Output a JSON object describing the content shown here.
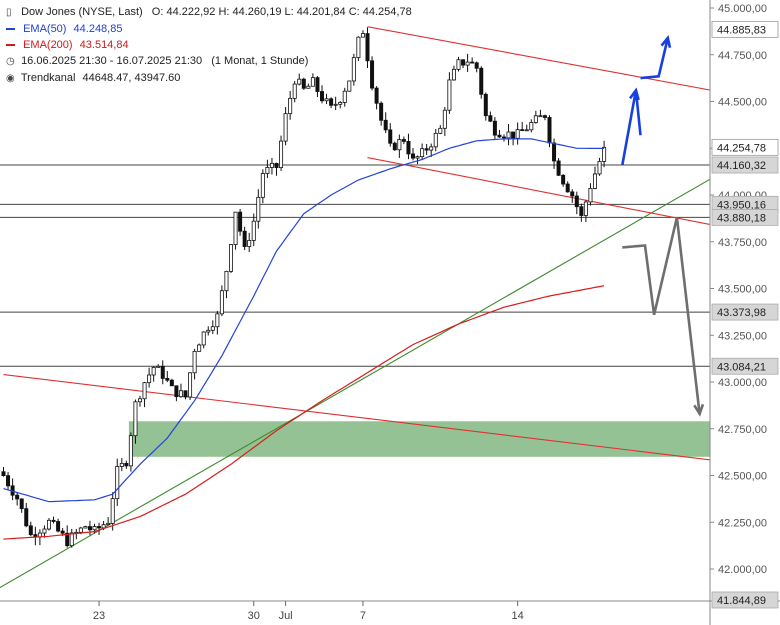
{
  "legend": {
    "title": "Dow Jones (NYSE, Last)",
    "ohlc": "O: 44.222,92  H: 44.260,19  L: 44.201,84  C: 44.254,78",
    "ema50_label": "EMA(50)",
    "ema50_value": "44.248,85",
    "ema200_label": "EMA(200)",
    "ema200_value": "43.514,84",
    "period": "16.06.2025 21:30 - 16.07.2025 21:30",
    "interval": "(1 Monat, 1 Stunde)",
    "trend_label": "Trendkanal",
    "trend_values": "44648.47, 43947.60"
  },
  "chart_data": {
    "type": "candlestick",
    "title": "Dow Jones (NYSE, Last)",
    "ylim": [
      41844.89,
      45000
    ],
    "y_ticks": [
      "42.000,00",
      "42.250,00",
      "42.500,00",
      "42.750,00",
      "43.000,00",
      "43.250,00",
      "43.500,00",
      "43.750,00",
      "44.000,00",
      "44.250,00",
      "44.500,00",
      "44.750,00",
      "45.000,00"
    ],
    "y_tick_values": [
      42000,
      42250,
      42500,
      42750,
      43000,
      43250,
      43500,
      43750,
      44000,
      44250,
      44500,
      44750,
      45000
    ],
    "x_ticks": [
      "23",
      "30",
      "Jul",
      "7",
      "14"
    ],
    "x_tick_bar": [
      21,
      55,
      62,
      79,
      113
    ],
    "n_bars": 133,
    "close_anchors": [
      [
        0,
        42500
      ],
      [
        3,
        42380
      ],
      [
        6,
        42180
      ],
      [
        10,
        42250
      ],
      [
        14,
        42150
      ],
      [
        18,
        42230
      ],
      [
        20,
        42200
      ],
      [
        23,
        42260
      ],
      [
        25,
        42520
      ],
      [
        27,
        42580
      ],
      [
        29,
        42880
      ],
      [
        31,
        43000
      ],
      [
        33,
        43080
      ],
      [
        35,
        43040
      ],
      [
        37,
        42960
      ],
      [
        40,
        42920
      ],
      [
        42,
        43180
      ],
      [
        45,
        43300
      ],
      [
        47,
        43350
      ],
      [
        49,
        43600
      ],
      [
        51,
        43920
      ],
      [
        53,
        43700
      ],
      [
        55,
        43860
      ],
      [
        57,
        44120
      ],
      [
        60,
        44150
      ],
      [
        62,
        44420
      ],
      [
        64,
        44620
      ],
      [
        66,
        44560
      ],
      [
        68,
        44600
      ],
      [
        70,
        44520
      ],
      [
        72,
        44460
      ],
      [
        74,
        44520
      ],
      [
        76,
        44620
      ],
      [
        78,
        44820
      ],
      [
        79,
        44880
      ],
      [
        81,
        44600
      ],
      [
        83,
        44400
      ],
      [
        85,
        44250
      ],
      [
        88,
        44300
      ],
      [
        90,
        44180
      ],
      [
        92,
        44220
      ],
      [
        94,
        44280
      ],
      [
        96,
        44350
      ],
      [
        98,
        44600
      ],
      [
        100,
        44700
      ],
      [
        102,
        44720
      ],
      [
        104,
        44680
      ],
      [
        106,
        44420
      ],
      [
        108,
        44350
      ],
      [
        110,
        44330
      ],
      [
        113,
        44320
      ],
      [
        116,
        44380
      ],
      [
        119,
        44430
      ],
      [
        121,
        44180
      ],
      [
        123,
        44080
      ],
      [
        125,
        44000
      ],
      [
        127,
        43880
      ],
      [
        129,
        44050
      ],
      [
        131,
        44180
      ],
      [
        132,
        44254.78
      ]
    ],
    "ema50_anchors": [
      [
        0,
        42430
      ],
      [
        10,
        42360
      ],
      [
        20,
        42370
      ],
      [
        24,
        42400
      ],
      [
        30,
        42560
      ],
      [
        36,
        42700
      ],
      [
        42,
        42900
      ],
      [
        48,
        43140
      ],
      [
        55,
        43460
      ],
      [
        60,
        43700
      ],
      [
        66,
        43900
      ],
      [
        72,
        44000
      ],
      [
        78,
        44080
      ],
      [
        85,
        44140
      ],
      [
        92,
        44190
      ],
      [
        98,
        44250
      ],
      [
        104,
        44290
      ],
      [
        110,
        44300
      ],
      [
        116,
        44300
      ],
      [
        120,
        44280
      ],
      [
        126,
        44250
      ],
      [
        132,
        44248.85
      ]
    ],
    "ema200_anchors": [
      [
        0,
        42160
      ],
      [
        10,
        42175
      ],
      [
        20,
        42200
      ],
      [
        30,
        42280
      ],
      [
        40,
        42400
      ],
      [
        50,
        42560
      ],
      [
        60,
        42740
      ],
      [
        70,
        42900
      ],
      [
        80,
        43050
      ],
      [
        90,
        43200
      ],
      [
        100,
        43310
      ],
      [
        110,
        43400
      ],
      [
        120,
        43460
      ],
      [
        132,
        43514.84
      ]
    ],
    "horizontal_levels": [
      44160.32,
      43950.16,
      43880.18,
      43373.98,
      43084.21
    ],
    "price_tags": [
      {
        "value": 44885.83,
        "label": "44.885,83",
        "style": "white"
      },
      {
        "value": 44254.78,
        "label": "44.254,78",
        "style": "white"
      },
      {
        "value": 44160.32,
        "label": "44.160,32",
        "style": "grey"
      },
      {
        "value": 43950.16,
        "label": "43.950,16",
        "style": "grey"
      },
      {
        "value": 43880.18,
        "label": "43.880,18",
        "style": "grey"
      },
      {
        "value": 43373.98,
        "label": "43.373,98",
        "style": "grey"
      },
      {
        "value": 43084.21,
        "label": "43.084,21",
        "style": "grey"
      },
      {
        "value": 41844.89,
        "label": "41.844,89",
        "style": "grey"
      }
    ],
    "channel_upper": [
      [
        80,
        44900
      ],
      [
        160,
        44540
      ]
    ],
    "channel_lower": [
      [
        80,
        44200
      ],
      [
        160,
        43820
      ]
    ],
    "red_trendline": [
      [
        0,
        43040
      ],
      [
        160,
        42570
      ]
    ],
    "green_trendline": [
      [
        -8,
        41800
      ],
      [
        160,
        44150
      ]
    ],
    "support_zone": [
      42600,
      42790
    ],
    "support_zone_start_bar": 28,
    "scenario_up": [
      [
        136,
        44160
      ],
      [
        139,
        44560
      ],
      [
        140,
        44320
      ],
      [
        140,
        44625
      ],
      [
        144,
        44635
      ],
      [
        146,
        44840
      ]
    ],
    "scenario_down": [
      [
        136,
        43720
      ],
      [
        141,
        43730
      ],
      [
        143,
        43360
      ],
      [
        148,
        43880
      ],
      [
        153,
        42830
      ]
    ],
    "colors": {
      "up": "#ffffff",
      "down": "#111111",
      "ema50": "#2444d8",
      "ema200": "#d81c1c",
      "channel": "#e03030",
      "trend_green": "#3c8a2c",
      "zone": "#8fbf8f",
      "scenario_up": "#1740e0",
      "scenario_down": "#6e6e6e",
      "level": "#444444"
    }
  }
}
